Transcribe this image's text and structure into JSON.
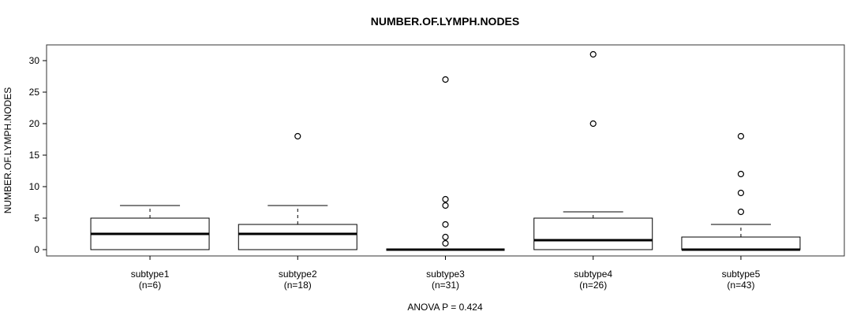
{
  "title": "NUMBER.OF.LYMPH.NODES",
  "ylabel": "NUMBER.OF.LYMPH.NODES",
  "footer": "ANOVA P = 0.424",
  "chart_data": {
    "type": "boxplot",
    "title": "NUMBER.OF.LYMPH.NODES",
    "ylabel": "NUMBER.OF.LYMPH.NODES",
    "annotation": "ANOVA P = 0.424",
    "yticks": [
      0,
      5,
      10,
      15,
      20,
      25,
      30
    ],
    "ylim": [
      -1,
      32.5
    ],
    "grid": false,
    "legend": null,
    "colors": {
      "line": "#000000",
      "frame": "#333333",
      "box_fill": "#ffffff",
      "background": "#ffffff"
    },
    "groups": [
      {
        "label": "subtype1",
        "sublabel": "(n=6)",
        "n": 6,
        "whisker_low": 0,
        "q1": 0,
        "median": 2.5,
        "q3": 5,
        "whisker_high": 7,
        "outliers": []
      },
      {
        "label": "subtype2",
        "sublabel": "(n=18)",
        "n": 18,
        "whisker_low": 0,
        "q1": 0,
        "median": 2.5,
        "q3": 4,
        "whisker_high": 7,
        "outliers": [
          18
        ]
      },
      {
        "label": "subtype3",
        "sublabel": "(n=31)",
        "n": 31,
        "whisker_low": 0,
        "q1": 0,
        "median": 0,
        "q3": 0,
        "whisker_high": 0,
        "outliers": [
          1,
          2,
          4,
          7,
          8,
          27
        ]
      },
      {
        "label": "subtype4",
        "sublabel": "(n=26)",
        "n": 26,
        "whisker_low": 0,
        "q1": 0,
        "median": 1.5,
        "q3": 5,
        "whisker_high": 6,
        "outliers": [
          20,
          31
        ]
      },
      {
        "label": "subtype5",
        "sublabel": "(n=43)",
        "n": 43,
        "whisker_low": 0,
        "q1": 0,
        "median": 0,
        "q3": 2,
        "whisker_high": 4,
        "outliers": [
          6,
          9,
          12,
          18
        ]
      }
    ]
  }
}
